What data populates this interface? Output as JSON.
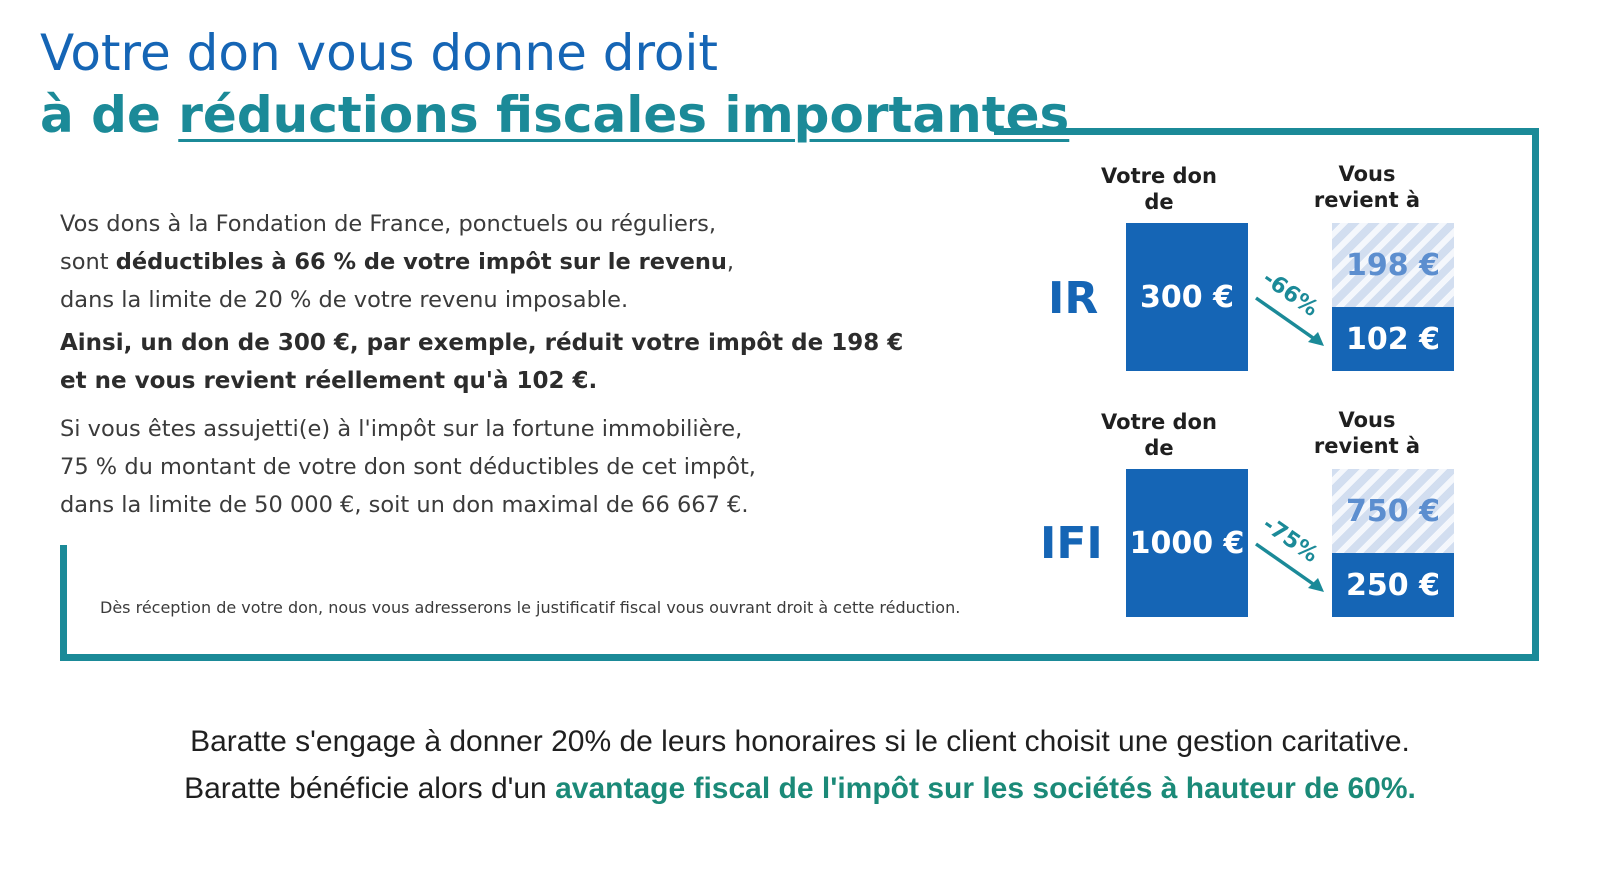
{
  "header": {
    "line1": "Votre don vous donne droit",
    "line2_prefix": "à de ",
    "line2_underlined": "réductions fiscales importantes"
  },
  "body": {
    "p1_line1": "Vos dons à la Fondation de France, ponctuels ou réguliers,",
    "p1_line2_prefix": "sont ",
    "p1_line2_bold": "déductibles à 66 % de votre impôt sur le revenu",
    "p1_line2_suffix": ",",
    "p1_line3": "dans la limite de 20 % de votre revenu imposable.",
    "p2_line1": "Ainsi, un don de 300 €, par exemple, réduit votre impôt de 198 €",
    "p2_line2": "et ne vous revient réellement qu'à 102 €.",
    "p3_line1": "Si vous êtes assujetti(e) à l'impôt sur la fortune immobilière,",
    "p3_line2": "75 % du montant de votre don sont déductibles de cet impôt,",
    "p3_line3": "dans la limite de 50 000 €, soit un don maximal de 66 667 €.",
    "footnote": "Dès réception de votre don, nous vous adresserons le justificatif fiscal vous ouvrant droit à cette réduction."
  },
  "infographic": {
    "col_don_line1": "Votre don",
    "col_don_line2": "de",
    "col_revient_line1": "Vous",
    "col_revient_line2": "revient à",
    "rows": [
      {
        "label": "IR",
        "don": "300 €",
        "reduction": "-66%",
        "saved": "198 €",
        "net": "102 €"
      },
      {
        "label": "IFI",
        "don": "1000 €",
        "reduction": "-75%",
        "saved": "750 €",
        "net": "250 €"
      }
    ],
    "colors": {
      "blue": "#1565b5",
      "teal": "#1b8a98",
      "hatch": "#d2def0"
    }
  },
  "bottom": {
    "line1": "Baratte s'engage à donner 20% de leurs honoraires si le client choisit une gestion caritative.",
    "line2_prefix": "Baratte bénéficie alors d'un ",
    "line2_highlight": "avantage fiscal de l'impôt sur les sociétés à hauteur de 60%."
  }
}
